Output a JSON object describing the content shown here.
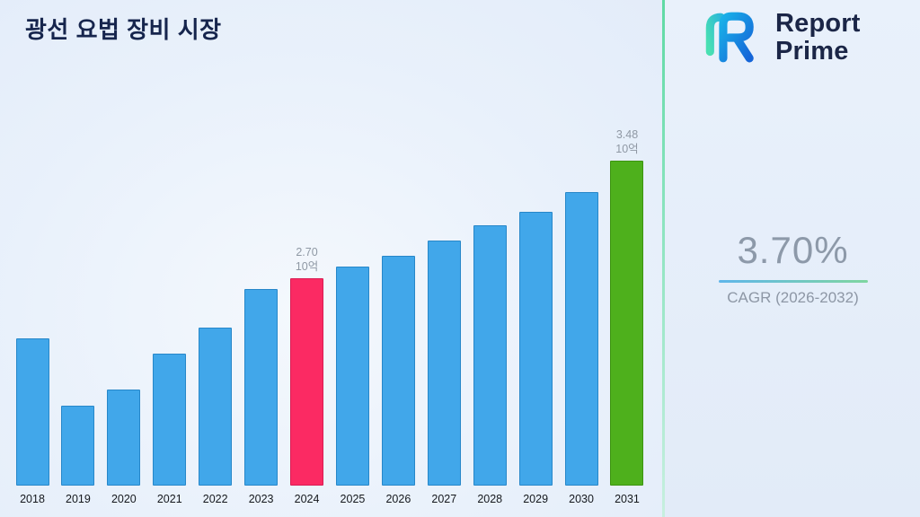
{
  "page": {
    "title": "광선 요법 장비 시장"
  },
  "logo": {
    "line1": "Report",
    "line2": "Prime"
  },
  "stats": {
    "cagr_value": "3.70%",
    "cagr_label": "CAGR (2026-2032)"
  },
  "colors": {
    "bar_fill": "#41a7ea",
    "bar_border": "#2787c9",
    "highlight_2024": "#fb2a63",
    "highlight_2024_border": "#d81b53",
    "highlight_2031": "#4eb01c",
    "highlight_2031_border": "#3c9410"
  },
  "chart_data": {
    "type": "bar",
    "title": "광선 요법 장비 시장",
    "xlabel": "",
    "ylabel": "",
    "unit": "10억",
    "categories": [
      "2018",
      "2019",
      "2020",
      "2021",
      "2022",
      "2023",
      "2024",
      "2025",
      "2026",
      "2027",
      "2028",
      "2029",
      "2030",
      "2031"
    ],
    "values": [
      2.3,
      1.85,
      1.96,
      2.2,
      2.37,
      2.63,
      2.7,
      2.78,
      2.85,
      2.95,
      3.05,
      3.14,
      3.27,
      3.48
    ],
    "ylim": [
      1.32,
      3.9
    ],
    "grid": false,
    "legend": "none",
    "highlighted": [
      {
        "category": "2024",
        "label_value": "2.70",
        "label_unit": "10억",
        "color": "#fb2a63",
        "border": "#d81b53"
      },
      {
        "category": "2031",
        "label_value": "3.48",
        "label_unit": "10억",
        "color": "#4eb01c",
        "border": "#3c9410"
      }
    ]
  }
}
